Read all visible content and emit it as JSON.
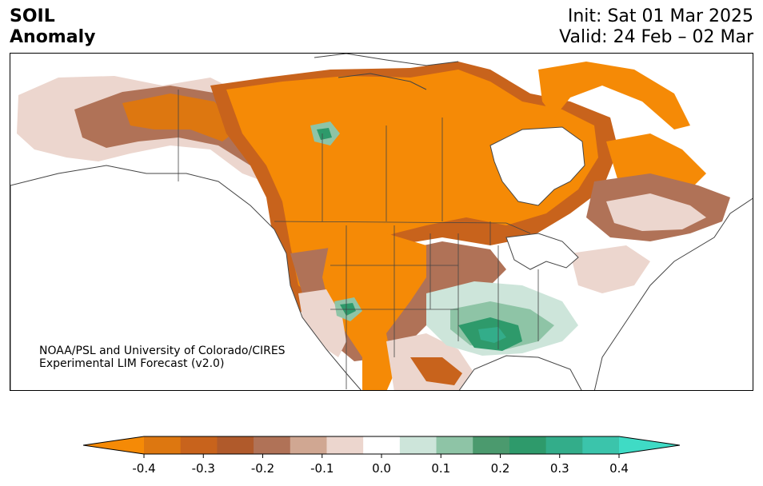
{
  "title": {
    "line1": "SOIL",
    "line2": "Anomaly"
  },
  "dates": {
    "init": "Init: Sat 01 Mar 2025",
    "valid": "Valid: 24 Feb – 02 Mar"
  },
  "credit": {
    "line1": "NOAA/PSL and University of Colorado/CIRES",
    "line2": "Experimental LIM Forecast (v2.0)"
  },
  "colorbar": {
    "levels": [
      -0.45,
      -0.35,
      -0.3,
      -0.25,
      -0.2,
      -0.15,
      -0.1,
      -0.05,
      0.05,
      0.1,
      0.15,
      0.2,
      0.25,
      0.3,
      0.35,
      0.45
    ],
    "colors": [
      "#f58a06",
      "#dd7710",
      "#c8631c",
      "#b05a2b",
      "#b07257",
      "#d0a792",
      "#ecd6ce",
      "#ffffff",
      "#cde5da",
      "#8ec4a6",
      "#4b9a6e",
      "#2e9a6b",
      "#33ad8a",
      "#3bc4ab",
      "#3fdbc5"
    ],
    "ticks": [
      "-0.4",
      "-0.3",
      "-0.2",
      "-0.1",
      "0.0",
      "0.1",
      "0.2",
      "0.3",
      "0.4"
    ]
  },
  "colors": {
    "coastline": "#444444",
    "land": "#ffffff"
  }
}
